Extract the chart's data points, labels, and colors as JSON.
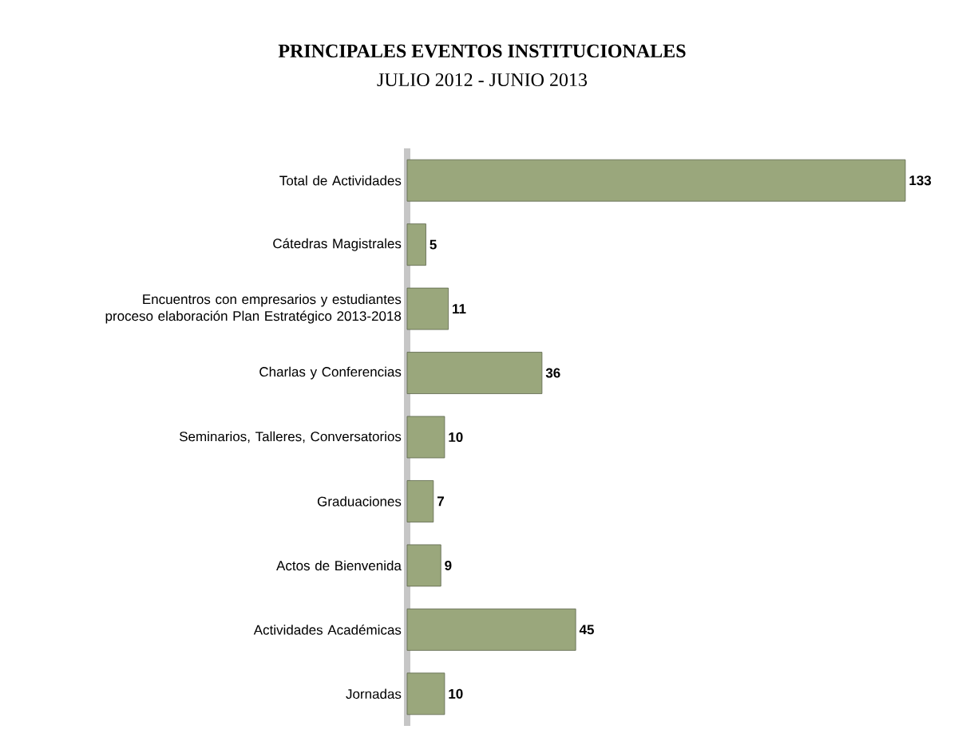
{
  "chart_data": {
    "type": "bar",
    "orientation": "horizontal",
    "title": "PRINCIPALES EVENTOS INSTITUCIONALES",
    "subtitle": "JULIO 2012 - JUNIO 2013",
    "categories": [
      "Total de Actividades",
      "Cátedras Magistrales",
      "Encuentros con empresarios y estudiantes proceso elaboración Plan Estratégico 2013-2018",
      "Charlas y Conferencias",
      "Seminarios, Talleres, Conversatorios",
      "Graduaciones",
      "Actos de Bienvenida",
      "Actividades Académicas",
      "Jornadas"
    ],
    "values": [
      133,
      5,
      11,
      36,
      10,
      7,
      9,
      45,
      10
    ],
    "color": "#9aa77c",
    "data_labels": true
  }
}
